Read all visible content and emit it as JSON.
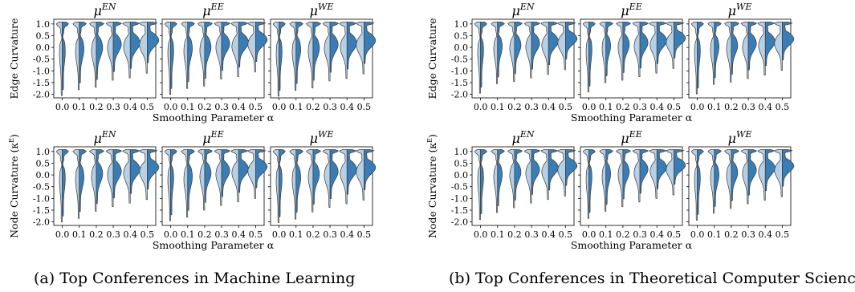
{
  "captions": {
    "a": "(a) Top Conferences in Machine Learning",
    "b": "(b) Top Conferences in Theoretical Computer Science"
  },
  "axis_labels": {
    "edge_y": "Edge Curvature",
    "node_y": "Node Curvature (κ",
    "node_y_sup": "E",
    "node_y_tail": ")",
    "x": "Smoothing Parameter α"
  },
  "panel_titles": [
    {
      "base": "μ",
      "sup": "EN"
    },
    {
      "base": "μ",
      "sup": "EE"
    },
    {
      "base": "μ",
      "sup": "WE"
    }
  ],
  "colors": {
    "left_half": "#b7d0e6",
    "right_half": "#3a7db5",
    "outline": "#3a3a3a"
  },
  "chart_data": {
    "type": "violin",
    "x_ticks": [
      "0.0",
      "0.1",
      "0.2",
      "0.3",
      "0.4",
      "0.5"
    ],
    "y_ticks": [
      1.0,
      0.5,
      0.0,
      -0.5,
      -1.0,
      -1.5,
      -2.0
    ],
    "ylim": [
      -2.15,
      1.2
    ],
    "split": true,
    "groups": [
      {
        "caption": "(a) Top Conferences in Machine Learning",
        "rows": [
          {
            "ylabel": "Edge Curvature",
            "mins": [
              -2.05,
              -1.8,
              -1.7,
              -1.4,
              -1.3,
              -1.1
            ],
            "panels": [
              "μ^EN",
              "μ^EE",
              "μ^WE"
            ]
          },
          {
            "ylabel": "Node Curvature (κ^E)",
            "mins": [
              -2.0,
              -1.85,
              -1.55,
              -1.35,
              -1.2,
              -1.05
            ],
            "panels": [
              "μ^EN",
              "μ^EE",
              "μ^WE"
            ]
          }
        ]
      },
      {
        "caption": "(b) Top Conferences in Theoretical Computer Science",
        "rows": [
          {
            "ylabel": "Edge Curvature",
            "mins": [
              -1.95,
              -1.55,
              -1.45,
              -1.3,
              -1.15,
              -0.95
            ],
            "panels": [
              "μ^EN",
              "μ^EE",
              "μ^WE"
            ]
          },
          {
            "ylabel": "Node Curvature (κ^E)",
            "mins": [
              -1.9,
              -1.6,
              -1.4,
              -1.2,
              -1.05,
              -0.9
            ],
            "panels": [
              "μ^EN",
              "μ^EE",
              "μ^WE"
            ]
          }
        ]
      }
    ]
  }
}
